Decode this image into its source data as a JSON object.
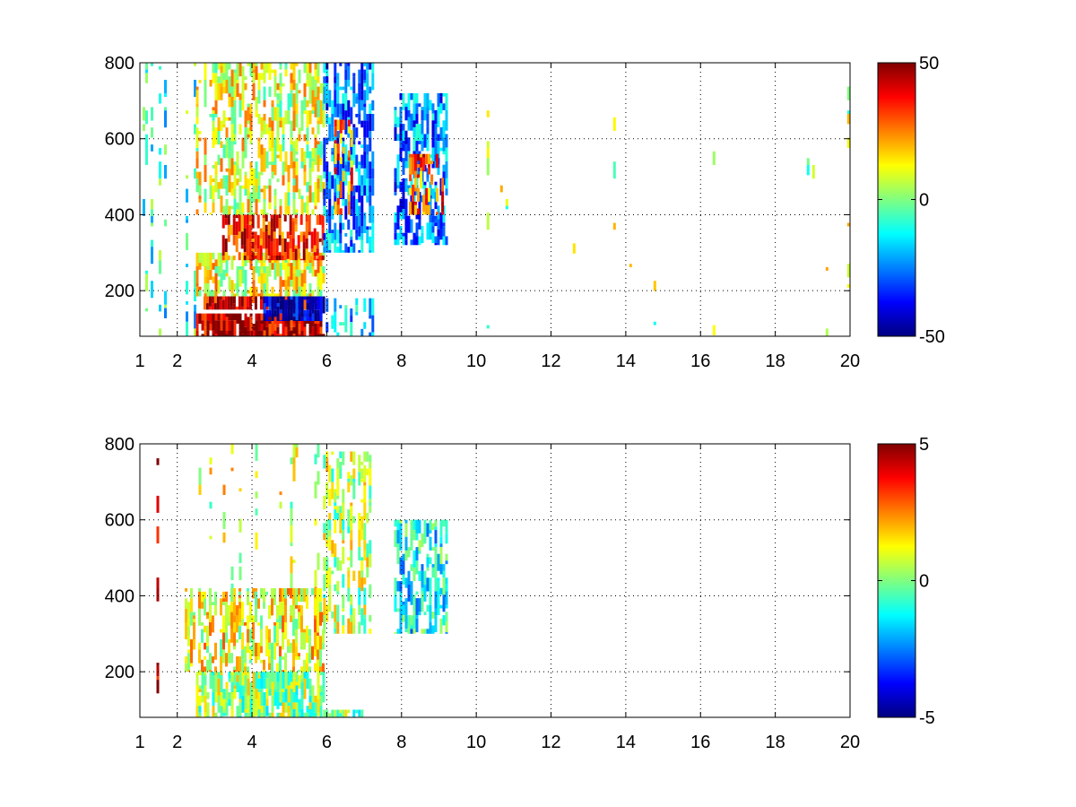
{
  "chart_data": [
    {
      "type": "heatmap",
      "title": "",
      "xlabel": "",
      "ylabel": "",
      "xlim": [
        1,
        20
      ],
      "ylim": [
        80,
        800
      ],
      "xticks": [
        1,
        2,
        4,
        6,
        8,
        10,
        12,
        14,
        16,
        18,
        20
      ],
      "yticks": [
        200,
        400,
        600,
        800
      ],
      "x_tick_labels": [
        "1",
        "2",
        "4",
        "6",
        "8",
        "10",
        "12",
        "14",
        "16",
        "18",
        "20"
      ],
      "y_tick_labels": [
        "200",
        "400",
        "600",
        "800"
      ],
      "grid": true,
      "grid_style": "dotted",
      "colormap": "jet",
      "clim": [
        -50,
        50
      ],
      "colorbar_ticks": [
        50,
        0,
        -50
      ],
      "colorbar_tick_labels": [
        "50",
        "0",
        "-50"
      ],
      "regions": [
        {
          "x": [
            1.0,
            2.5
          ],
          "y": [
            80,
            800
          ],
          "value": -8,
          "density": 0.35
        },
        {
          "x": [
            2.5,
            5.9
          ],
          "y": [
            80,
            140
          ],
          "value": 45,
          "density": 0.9
        },
        {
          "x": [
            2.7,
            5.8
          ],
          "y": [
            150,
            185
          ],
          "value": 42,
          "density": 0.9
        },
        {
          "x": [
            4.3,
            5.9
          ],
          "y": [
            120,
            185
          ],
          "value": -45,
          "density": 0.85
        },
        {
          "x": [
            2.5,
            5.9
          ],
          "y": [
            185,
            300
          ],
          "value": 12,
          "density": 0.75
        },
        {
          "x": [
            3.2,
            5.9
          ],
          "y": [
            280,
            400
          ],
          "value": 35,
          "density": 0.8
        },
        {
          "x": [
            2.5,
            5.9
          ],
          "y": [
            400,
            800
          ],
          "value": 10,
          "density": 0.6
        },
        {
          "x": [
            5.9,
            7.2
          ],
          "y": [
            80,
            180
          ],
          "value": -20,
          "density": 0.45
        },
        {
          "x": [
            5.9,
            7.2
          ],
          "y": [
            300,
            800
          ],
          "value": -25,
          "density": 0.7
        },
        {
          "x": [
            6.2,
            6.7
          ],
          "y": [
            400,
            650
          ],
          "value": 25,
          "density": 0.6
        },
        {
          "x": [
            7.8,
            9.2
          ],
          "y": [
            320,
            720
          ],
          "value": -25,
          "density": 0.65
        },
        {
          "x": [
            8.2,
            9.1
          ],
          "y": [
            400,
            560
          ],
          "value": 30,
          "density": 0.5
        },
        {
          "x": [
            9.2,
            20.0
          ],
          "y": [
            80,
            800
          ],
          "value": 4,
          "density": 0.07
        }
      ]
    },
    {
      "type": "heatmap",
      "title": "",
      "xlabel": "",
      "ylabel": "",
      "xlim": [
        1,
        20
      ],
      "ylim": [
        80,
        800
      ],
      "xticks": [
        1,
        2,
        4,
        6,
        8,
        10,
        12,
        14,
        16,
        18,
        20
      ],
      "yticks": [
        200,
        400,
        600,
        800
      ],
      "x_tick_labels": [
        "1",
        "2",
        "4",
        "6",
        "8",
        "10",
        "12",
        "14",
        "16",
        "18",
        "20"
      ],
      "y_tick_labels": [
        "200",
        "400",
        "600",
        "800"
      ],
      "grid": true,
      "grid_style": "dotted",
      "colormap": "jet",
      "clim": [
        -5,
        5
      ],
      "colorbar_ticks": [
        5,
        0,
        -5
      ],
      "colorbar_tick_labels": [
        "5",
        "0",
        "-5"
      ],
      "regions": [
        {
          "x": [
            1.3,
            1.5
          ],
          "y": [
            80,
            780
          ],
          "value": 4.5,
          "density": 0.25
        },
        {
          "x": [
            2.5,
            5.9
          ],
          "y": [
            80,
            200
          ],
          "value": 0.2,
          "density": 0.85
        },
        {
          "x": [
            2.2,
            5.9
          ],
          "y": [
            200,
            420
          ],
          "value": 1.2,
          "density": 0.6
        },
        {
          "x": [
            2.5,
            5.9
          ],
          "y": [
            420,
            800
          ],
          "value": 0.8,
          "density": 0.2
        },
        {
          "x": [
            5.9,
            7.2
          ],
          "y": [
            300,
            780
          ],
          "value": 0.5,
          "density": 0.55
        },
        {
          "x": [
            5.9,
            7.0
          ],
          "y": [
            80,
            100
          ],
          "value": 0.2,
          "density": 0.7
        },
        {
          "x": [
            7.8,
            9.2
          ],
          "y": [
            300,
            600
          ],
          "value": -1.2,
          "density": 0.6
        }
      ]
    }
  ]
}
